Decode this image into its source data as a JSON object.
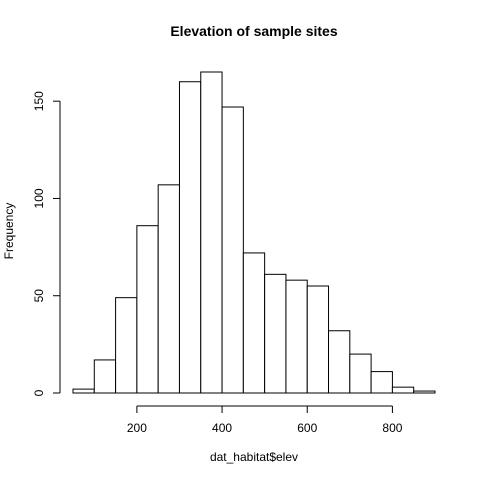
{
  "chart_data": {
    "type": "bar",
    "title": "Elevation of sample sites",
    "xlabel": "dat_habitat$elev",
    "ylabel": "Frequency",
    "bin_edges": [
      50,
      100,
      150,
      200,
      250,
      300,
      350,
      400,
      450,
      500,
      550,
      600,
      650,
      700,
      750,
      800,
      850,
      900
    ],
    "values": [
      2,
      17,
      49,
      86,
      107,
      160,
      165,
      147,
      72,
      61,
      58,
      55,
      32,
      20,
      11,
      3,
      1
    ],
    "xlim": [
      50,
      900
    ],
    "ylim": [
      0,
      165
    ],
    "x_ticks": [
      200,
      400,
      600,
      800
    ],
    "y_ticks": [
      0,
      50,
      100,
      150
    ],
    "grid": false,
    "legend": "none",
    "bar_fill": "#ffffff",
    "bar_stroke": "#000000"
  }
}
